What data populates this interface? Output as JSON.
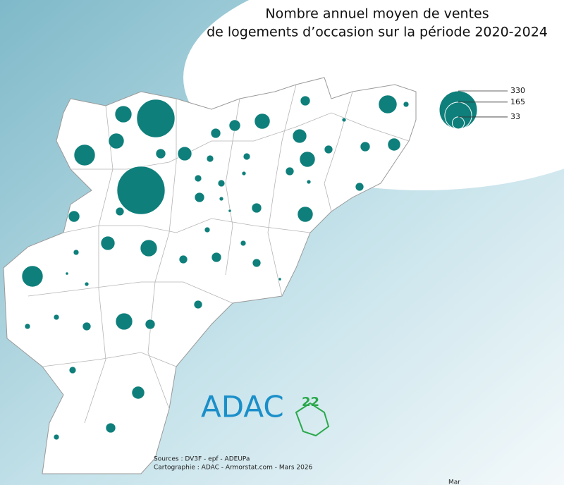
{
  "title": [
    "Nombre annuel moyen de ventes",
    "de logements d’occasion sur la période 2020-2024"
  ],
  "legend": {
    "values": [
      330,
      165,
      33
    ]
  },
  "circles": {
    "values": [
      330,
      523,
      102,
      65,
      55,
      45,
      22,
      22,
      29,
      55,
      22,
      45,
      55,
      16,
      4,
      77,
      7,
      22,
      37,
      16,
      55,
      16,
      4,
      11,
      11,
      4,
      11,
      11,
      4,
      2,
      22,
      22,
      16,
      29,
      7,
      7,
      45,
      65,
      7,
      22,
      16,
      16,
      102,
      2,
      4,
      2,
      16,
      65,
      22,
      7,
      7,
      16,
      11,
      37,
      22,
      7
    ]
  },
  "logo": {
    "name": "ADAC",
    "number": "22"
  },
  "sources": "Sources : DV3F - epf - ADEUPa",
  "cartography": "Cartographie : ADAC - Armorstat.com - Mars 2026",
  "footer": "Mar"
}
